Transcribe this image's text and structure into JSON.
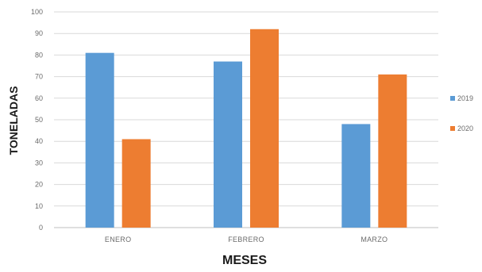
{
  "chart_data": {
    "type": "bar",
    "categories": [
      "ENERO",
      "FEBRERO",
      "MARZO"
    ],
    "series": [
      {
        "name": "2019",
        "color": "#5b9bd5",
        "values": [
          81,
          77,
          48
        ]
      },
      {
        "name": "2020",
        "color": "#ed7d31",
        "values": [
          41,
          92,
          71
        ]
      }
    ],
    "xlabel": "MESES",
    "ylabel": "TONELADAS",
    "ylim": [
      0,
      100
    ],
    "yticks": [
      0,
      10,
      20,
      30,
      40,
      50,
      60,
      70,
      80,
      90,
      100
    ],
    "grid": true,
    "legend": "right"
  }
}
